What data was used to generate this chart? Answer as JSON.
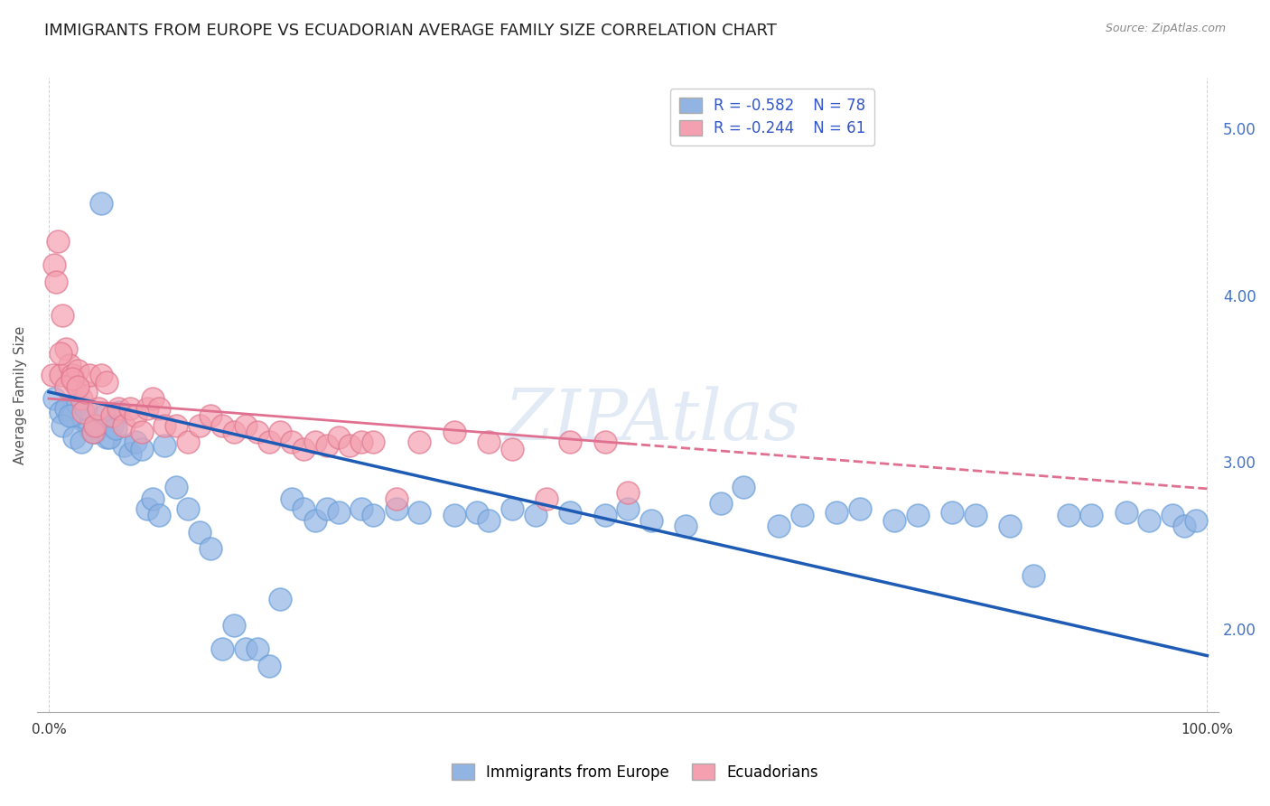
{
  "title": "IMMIGRANTS FROM EUROPE VS ECUADORIAN AVERAGE FAMILY SIZE CORRELATION CHART",
  "source": "Source: ZipAtlas.com",
  "ylabel": "Average Family Size",
  "watermark": "ZIPAtlas",
  "series1_label": "Immigrants from Europe",
  "series1_color": "#92b4e3",
  "series1_border": "#6a9fd8",
  "series1_R": -0.582,
  "series1_N": 78,
  "series2_label": "Ecuadorians",
  "series2_color": "#f4a0b0",
  "series2_border": "#e07890",
  "series2_R": -0.244,
  "series2_N": 61,
  "legend_text_color": "#3355cc",
  "right_ytick_color": "#4472c4",
  "series1_x": [
    0.5,
    1.0,
    1.5,
    2.0,
    2.5,
    3.0,
    3.5,
    4.0,
    4.5,
    5.0,
    5.5,
    6.0,
    6.5,
    7.0,
    7.5,
    8.0,
    8.5,
    9.0,
    9.5,
    10.0,
    11.0,
    12.0,
    13.0,
    14.0,
    15.0,
    16.0,
    17.0,
    18.0,
    19.0,
    20.0,
    21.0,
    22.0,
    23.0,
    24.0,
    25.0,
    27.0,
    28.0,
    30.0,
    32.0,
    35.0,
    37.0,
    38.0,
    40.0,
    42.0,
    45.0,
    48.0,
    50.0,
    52.0,
    55.0,
    58.0,
    60.0,
    63.0,
    65.0,
    68.0,
    70.0,
    73.0,
    75.0,
    78.0,
    80.0,
    83.0,
    85.0,
    88.0,
    90.0,
    93.0,
    95.0,
    97.0,
    98.0,
    99.0,
    1.2,
    1.8,
    2.2,
    2.8,
    3.2,
    3.8,
    4.2,
    4.8,
    5.2,
    5.8
  ],
  "series1_y": [
    3.38,
    3.3,
    3.32,
    3.28,
    3.35,
    3.25,
    3.2,
    3.18,
    4.55,
    3.15,
    3.22,
    3.3,
    3.1,
    3.05,
    3.12,
    3.08,
    2.72,
    2.78,
    2.68,
    3.1,
    2.85,
    2.72,
    2.58,
    2.48,
    1.88,
    2.02,
    1.88,
    1.88,
    1.78,
    2.18,
    2.78,
    2.72,
    2.65,
    2.72,
    2.7,
    2.72,
    2.68,
    2.72,
    2.7,
    2.68,
    2.7,
    2.65,
    2.72,
    2.68,
    2.7,
    2.68,
    2.72,
    2.65,
    2.62,
    2.75,
    2.85,
    2.62,
    2.68,
    2.7,
    2.72,
    2.65,
    2.68,
    2.7,
    2.68,
    2.62,
    2.32,
    2.68,
    2.68,
    2.7,
    2.65,
    2.68,
    2.62,
    2.65,
    3.22,
    3.28,
    3.15,
    3.12,
    3.32,
    3.18,
    3.22,
    3.28,
    3.15,
    3.2
  ],
  "series2_x": [
    0.3,
    0.5,
    0.6,
    0.8,
    1.0,
    1.2,
    1.5,
    1.8,
    2.0,
    2.2,
    2.5,
    2.8,
    3.0,
    3.2,
    3.5,
    3.8,
    4.0,
    4.3,
    4.5,
    5.0,
    5.5,
    6.0,
    6.5,
    7.0,
    7.5,
    8.0,
    8.5,
    9.0,
    9.5,
    10.0,
    11.0,
    12.0,
    13.0,
    14.0,
    15.0,
    16.0,
    17.0,
    18.0,
    19.0,
    20.0,
    21.0,
    22.0,
    23.0,
    24.0,
    25.0,
    26.0,
    27.0,
    28.0,
    30.0,
    32.0,
    35.0,
    38.0,
    40.0,
    43.0,
    45.0,
    48.0,
    50.0,
    1.0,
    1.5,
    2.0,
    2.5
  ],
  "series2_y": [
    3.52,
    4.18,
    4.08,
    4.32,
    3.52,
    3.88,
    3.68,
    3.58,
    3.52,
    3.48,
    3.55,
    3.38,
    3.3,
    3.42,
    3.52,
    3.18,
    3.22,
    3.32,
    3.52,
    3.48,
    3.28,
    3.32,
    3.22,
    3.32,
    3.28,
    3.18,
    3.32,
    3.38,
    3.32,
    3.22,
    3.22,
    3.12,
    3.22,
    3.28,
    3.22,
    3.18,
    3.22,
    3.18,
    3.12,
    3.18,
    3.12,
    3.08,
    3.12,
    3.1,
    3.15,
    3.1,
    3.12,
    3.12,
    2.78,
    3.12,
    3.18,
    3.12,
    3.08,
    2.78,
    3.12,
    3.12,
    2.82,
    3.65,
    3.45,
    3.5,
    3.45
  ],
  "ylim": [
    1.5,
    5.3
  ],
  "xlim": [
    -1.0,
    101.0
  ],
  "right_yticks": [
    2.0,
    3.0,
    4.0,
    5.0
  ],
  "grid_color": "#cccccc",
  "bg_color": "#ffffff",
  "title_fontsize": 13,
  "marker_size": 8,
  "trend1_color": "#1e5bb5",
  "trend2_color": "#e07090",
  "trend1_intercept": 3.42,
  "trend1_slope": -0.0158,
  "trend2_intercept": 3.38,
  "trend2_slope": -0.0054,
  "trend2_solid_end": 50.0
}
